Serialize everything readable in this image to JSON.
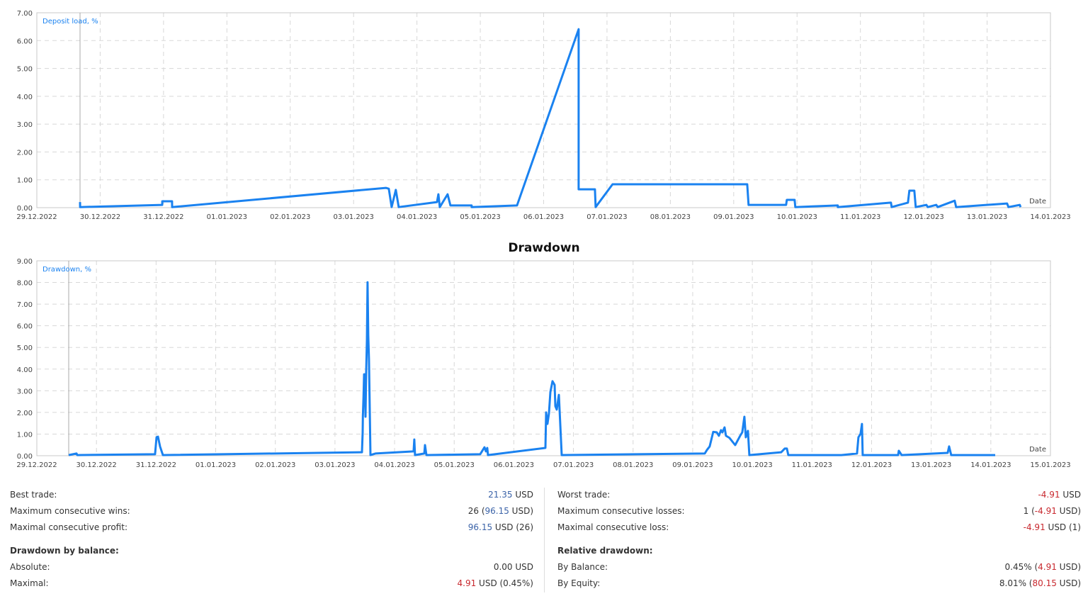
{
  "colors": {
    "line": "#1a82f0",
    "grid": "#d8d8d8",
    "legend": "#1a82f0",
    "positive": "#3b63a8",
    "negative": "#c8282e"
  },
  "chart_data": [
    {
      "type": "line",
      "title": "",
      "legend": "Deposit load, %",
      "xlabel": "Date",
      "ylabel": "",
      "xlim": [
        "29.12.2022",
        "14.01.2023"
      ],
      "ylim": [
        0,
        7
      ],
      "grid": true,
      "yticks": [
        "0.00",
        "1.00",
        "2.00",
        "3.00",
        "4.00",
        "5.00",
        "6.00",
        "7.00"
      ],
      "xticks": [
        "29.12.2022",
        "30.12.2022",
        "31.12.2022",
        "01.01.2023",
        "02.01.2023",
        "03.01.2023",
        "04.01.2023",
        "05.01.2023",
        "06.01.2023",
        "07.01.2023",
        "08.01.2023",
        "09.01.2023",
        "10.01.2023",
        "11.01.2023",
        "12.01.2023",
        "13.01.2023",
        "14.01.2023"
      ],
      "series": [
        {
          "points": [
            [
              "29.12.2022 16:22",
              0.2
            ],
            [
              "29.12.2022 16:23",
              0.02
            ],
            [
              "30.12.2022 23:30",
              0.1
            ],
            [
              "30.12.2022 23:31",
              0.23
            ],
            [
              "31.12.2022 03:14",
              0.23
            ],
            [
              "31.12.2022 03:15",
              0.02
            ],
            [
              "03.01.2023 12:15",
              0.71
            ],
            [
              "03.01.2023 13:20",
              0.68
            ],
            [
              "03.01.2023 14:25",
              0.02
            ],
            [
              "03.01.2023 16:00",
              0.64
            ],
            [
              "03.01.2023 17:06",
              0.02
            ],
            [
              "04.01.2023 07:35",
              0.2
            ],
            [
              "04.01.2023 08:07",
              0.48
            ],
            [
              "04.01.2023 08:40",
              0.02
            ],
            [
              "04.01.2023 11:37",
              0.48
            ],
            [
              "04.01.2023 12:41",
              0.08
            ],
            [
              "04.01.2023 20:43",
              0.08
            ],
            [
              "04.01.2023 20:44",
              0.02
            ],
            [
              "05.01.2023 13:55",
              0.08
            ],
            [
              "06.01.2023 13:15",
              6.41
            ],
            [
              "06.01.2023 13:16",
              0.66
            ],
            [
              "06.01.2023 19:25",
              0.66
            ],
            [
              "06.01.2023 19:41",
              0.02
            ],
            [
              "07.01.2023 02:07",
              0.84
            ],
            [
              "09.01.2023 05:07",
              0.84
            ],
            [
              "09.01.2023 05:38",
              0.1
            ],
            [
              "09.01.2023 19:52",
              0.1
            ],
            [
              "09.01.2023 20:08",
              0.28
            ],
            [
              "09.01.2023 23:04",
              0.28
            ],
            [
              "09.01.2023 23:21",
              0.02
            ],
            [
              "10.01.2023 15:25",
              0.08
            ],
            [
              "10.01.2023 15:26",
              0.02
            ],
            [
              "11.01.2023 11:34",
              0.18
            ],
            [
              "11.01.2023 11:50",
              0.02
            ],
            [
              "11.01.2023 18:00",
              0.18
            ],
            [
              "11.01.2023 18:32",
              0.61
            ],
            [
              "11.01.2023 20:26",
              0.61
            ],
            [
              "11.01.2023 20:58",
              0.02
            ],
            [
              "12.01.2023 01:00",
              0.1
            ],
            [
              "12.01.2023 01:32",
              0.02
            ],
            [
              "12.01.2023 04:45",
              0.1
            ],
            [
              "12.01.2023 05:17",
              0.02
            ],
            [
              "12.01.2023 11:43",
              0.25
            ],
            [
              "12.01.2023 12:15",
              0.02
            ],
            [
              "13.01.2023 07:34",
              0.15
            ],
            [
              "13.01.2023 08:06",
              0.02
            ],
            [
              "13.01.2023 12:23",
              0.1
            ],
            [
              "13.01.2023 12:40",
              0.02
            ]
          ]
        }
      ]
    },
    {
      "type": "line",
      "title": "Drawdown",
      "legend": "Drawdown, %",
      "xlabel": "Date",
      "ylabel": "",
      "xlim": [
        "29.12.2022",
        "15.01.2023"
      ],
      "ylim": [
        0,
        9
      ],
      "grid": true,
      "yticks": [
        "0.00",
        "1.00",
        "2.00",
        "3.00",
        "4.00",
        "5.00",
        "6.00",
        "7.00",
        "8.00",
        "9.00"
      ],
      "xticks": [
        "29.12.2022",
        "30.12.2022",
        "31.12.2022",
        "01.01.2023",
        "02.01.2023",
        "03.01.2023",
        "04.01.2023",
        "05.01.2023",
        "06.01.2023",
        "07.01.2023",
        "08.01.2023",
        "09.01.2023",
        "10.01.2023",
        "11.01.2023",
        "12.01.2023",
        "13.01.2023",
        "14.01.2023",
        "15.01.2023"
      ],
      "series": [
        {
          "points": [
            [
              "29.12.2022 12:50",
              0.03
            ],
            [
              "29.12.2022 16:00",
              0.1
            ],
            [
              "29.12.2022 16:15",
              0.03
            ],
            [
              "30.12.2022 23:36",
              0.07
            ],
            [
              "31.12.2022 00:11",
              0.85
            ],
            [
              "31.12.2022 00:45",
              0.88
            ],
            [
              "31.12.2022 01:36",
              0.42
            ],
            [
              "31.12.2022 02:45",
              0.03
            ],
            [
              "03.01.2023 10:52",
              0.16
            ],
            [
              "03.01.2023 11:09",
              1.08
            ],
            [
              "03.01.2023 11:15",
              1.83
            ],
            [
              "03.01.2023 11:30",
              2.72
            ],
            [
              "03.01.2023 11:43",
              3.76
            ],
            [
              "03.01.2023 12:00",
              3.76
            ],
            [
              "03.01.2023 12:17",
              1.8
            ],
            [
              "03.01.2023 12:34",
              3.93
            ],
            [
              "03.01.2023 12:51",
              5.33
            ],
            [
              "03.01.2023 13:08",
              8.01
            ],
            [
              "03.01.2023 13:25",
              5.56
            ],
            [
              "03.01.2023 13:42",
              4.45
            ],
            [
              "03.01.2023 14:17",
              0.03
            ],
            [
              "03.01.2023 16:17",
              0.1
            ],
            [
              "04.01.2023 07:40",
              0.2
            ],
            [
              "04.01.2023 07:57",
              0.75
            ],
            [
              "04.01.2023 08:14",
              0.03
            ],
            [
              "04.01.2023 11:57",
              0.1
            ],
            [
              "04.01.2023 12:14",
              0.49
            ],
            [
              "04.01.2023 12:48",
              0.03
            ],
            [
              "05.01.2023 10:28",
              0.07
            ],
            [
              "05.01.2023 12:11",
              0.39
            ],
            [
              "05.01.2023 12:45",
              0.2
            ],
            [
              "05.01.2023 13:19",
              0.36
            ],
            [
              "05.01.2023 13:36",
              0.03
            ],
            [
              "06.01.2023 12:42",
              0.36
            ],
            [
              "06.01.2023 13:00",
              2.0
            ],
            [
              "06.01.2023 13:33",
              1.47
            ],
            [
              "06.01.2023 14:08",
              1.96
            ],
            [
              "06.01.2023 14:42",
              2.94
            ],
            [
              "06.01.2023 15:33",
              3.44
            ],
            [
              "06.01.2023 16:25",
              3.27
            ],
            [
              "06.01.2023 16:42",
              2.29
            ],
            [
              "06.01.2023 17:16",
              2.13
            ],
            [
              "06.01.2023 18:07",
              2.81
            ],
            [
              "06.01.2023 19:16",
              0.03
            ],
            [
              "09.01.2023 04:51",
              0.1
            ],
            [
              "09.01.2023 05:42",
              0.26
            ],
            [
              "09.01.2023 06:50",
              0.43
            ],
            [
              "09.01.2023 08:16",
              1.1
            ],
            [
              "09.01.2023 09:41",
              1.08
            ],
            [
              "09.01.2023 10:33",
              0.92
            ],
            [
              "09.01.2023 11:24",
              1.18
            ],
            [
              "09.01.2023 11:58",
              1.08
            ],
            [
              "09.01.2023 12:49",
              1.31
            ],
            [
              "09.01.2023 13:24",
              0.92
            ],
            [
              "09.01.2023 14:49",
              0.82
            ],
            [
              "09.01.2023 17:06",
              0.49
            ],
            [
              "09.01.2023 19:05",
              0.92
            ],
            [
              "09.01.2023 19:57",
              1.08
            ],
            [
              "09.01.2023 20:48",
              1.8
            ],
            [
              "09.01.2023 21:22",
              0.85
            ],
            [
              "09.01.2023 22:14",
              1.15
            ],
            [
              "09.01.2023 22:48",
              0.03
            ],
            [
              "10.01.2023 11:38",
              0.16
            ],
            [
              "10.01.2023 13:04",
              0.33
            ],
            [
              "10.01.2023 13:55",
              0.33
            ],
            [
              "10.01.2023 14:29",
              0.03
            ],
            [
              "11.01.2023 11:52",
              0.03
            ],
            [
              "11.01.2023 18:08",
              0.1
            ],
            [
              "11.01.2023 18:43",
              0.85
            ],
            [
              "11.01.2023 19:34",
              1.01
            ],
            [
              "11.01.2023 20:08",
              1.47
            ],
            [
              "11.01.2023 20:25",
              0.03
            ],
            [
              "12.01.2023 10:40",
              0.03
            ],
            [
              "12.01.2023 10:57",
              0.23
            ],
            [
              "12.01.2023 12:05",
              0.03
            ],
            [
              "13.01.2023 06:38",
              0.13
            ],
            [
              "13.01.2023 07:12",
              0.43
            ],
            [
              "13.01.2023 08:03",
              0.03
            ],
            [
              "14.01.2023 01:45",
              0.03
            ]
          ]
        }
      ]
    }
  ],
  "stats": {
    "left": [
      {
        "label": "Best trade:",
        "value": [
          [
            "21.35",
            "blue"
          ],
          [
            " USD",
            ""
          ]
        ]
      },
      {
        "label": "Maximum consecutive wins:",
        "value": [
          [
            "26 (",
            ""
          ],
          [
            "96.15",
            "blue"
          ],
          [
            " USD)",
            ""
          ]
        ]
      },
      {
        "label": "Maximal consecutive profit:",
        "value": [
          [
            "96.15",
            "blue"
          ],
          [
            " USD (26)",
            ""
          ]
        ]
      },
      {
        "label": "Drawdown by balance:",
        "head": true,
        "value": []
      },
      {
        "label": "Absolute:",
        "value": [
          [
            "0.00 USD",
            ""
          ]
        ]
      },
      {
        "label": "Maximal:",
        "value": [
          [
            "4.91",
            "red"
          ],
          [
            " USD (0.45%)",
            ""
          ]
        ]
      }
    ],
    "right": [
      {
        "label": "Worst trade:",
        "value": [
          [
            "-4.91",
            "red"
          ],
          [
            " USD",
            ""
          ]
        ]
      },
      {
        "label": "Maximum consecutive losses:",
        "value": [
          [
            "1 (",
            ""
          ],
          [
            "-4.91",
            "red"
          ],
          [
            " USD)",
            ""
          ]
        ]
      },
      {
        "label": "Maximal consecutive loss:",
        "value": [
          [
            "-4.91",
            "red"
          ],
          [
            " USD (1)",
            ""
          ]
        ]
      },
      {
        "label": "Relative drawdown:",
        "head": true,
        "value": []
      },
      {
        "label": "By Balance:",
        "value": [
          [
            "0.45% (",
            ""
          ],
          [
            "4.91",
            "red"
          ],
          [
            " USD)",
            ""
          ]
        ]
      },
      {
        "label": "By Equity:",
        "value": [
          [
            "8.01% (",
            ""
          ],
          [
            "80.15",
            "red"
          ],
          [
            " USD)",
            ""
          ]
        ]
      }
    ]
  }
}
